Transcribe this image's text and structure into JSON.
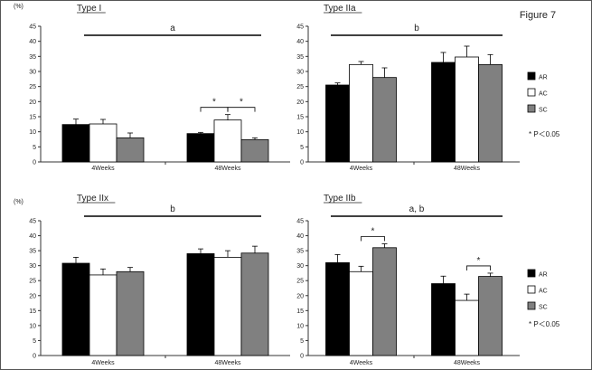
{
  "figure_label": "Figure 7",
  "colors": {
    "AR": "#000000",
    "AC": "#ffffff",
    "SC": "#808080",
    "axis": "#333333"
  },
  "legend": {
    "entries": [
      {
        "name": "AR",
        "color": "#000000"
      },
      {
        "name": "AC",
        "color": "#ffffff"
      },
      {
        "name": "SC",
        "color": "#808080"
      }
    ],
    "note": "* P＜0.05"
  },
  "chart_data": [
    {
      "type": "bar",
      "title": "Type I",
      "ylabel": "(%)",
      "ylim": [
        0,
        45
      ],
      "yticks": [
        0,
        5,
        10,
        15,
        20,
        25,
        30,
        35,
        40,
        45
      ],
      "categories": [
        "4Weeks",
        "48Weeks"
      ],
      "series": [
        {
          "name": "AR",
          "values": [
            12.4,
            9.4
          ],
          "errors": [
            1.8,
            0.4
          ]
        },
        {
          "name": "AC",
          "values": [
            12.6,
            13.9
          ],
          "errors": [
            1.5,
            1.8
          ]
        },
        {
          "name": "SC",
          "values": [
            8.0,
            7.4
          ],
          "errors": [
            1.6,
            0.6
          ]
        }
      ],
      "significance_label": "a",
      "brackets": [
        {
          "category": 1,
          "from": 0,
          "to": 1,
          "label": "*"
        },
        {
          "category": 1,
          "from": 1,
          "to": 2,
          "label": "*"
        }
      ]
    },
    {
      "type": "bar",
      "title": "Type IIa",
      "ylabel": "",
      "ylim": [
        0,
        45
      ],
      "yticks": [
        0,
        5,
        10,
        15,
        20,
        25,
        30,
        35,
        40,
        45
      ],
      "categories": [
        "4Weeks",
        "48Weeks"
      ],
      "series": [
        {
          "name": "AR",
          "values": [
            25.5,
            33.0
          ],
          "errors": [
            0.7,
            3.3
          ]
        },
        {
          "name": "AC",
          "values": [
            32.3,
            34.8
          ],
          "errors": [
            1.0,
            3.6
          ]
        },
        {
          "name": "SC",
          "values": [
            28.0,
            32.3
          ],
          "errors": [
            3.2,
            3.3
          ]
        }
      ],
      "significance_label": "b",
      "brackets": []
    },
    {
      "type": "bar",
      "title": "Type IIx",
      "ylabel": "(%)",
      "ylim": [
        0,
        45
      ],
      "yticks": [
        0,
        5,
        10,
        15,
        20,
        25,
        30,
        35,
        40,
        45
      ],
      "categories": [
        "4Weeks",
        "48Weeks"
      ],
      "series": [
        {
          "name": "AR",
          "values": [
            30.8,
            34.0
          ],
          "errors": [
            2.0,
            1.6
          ]
        },
        {
          "name": "AC",
          "values": [
            26.9,
            32.8
          ],
          "errors": [
            2.0,
            2.2
          ]
        },
        {
          "name": "SC",
          "values": [
            28.0,
            34.2
          ],
          "errors": [
            1.4,
            2.3
          ]
        }
      ],
      "significance_label": "b",
      "brackets": []
    },
    {
      "type": "bar",
      "title": "Type IIb",
      "ylabel": "",
      "ylim": [
        0,
        45
      ],
      "yticks": [
        0,
        5,
        10,
        15,
        20,
        25,
        30,
        35,
        40,
        45
      ],
      "categories": [
        "4Weeks",
        "48Weeks"
      ],
      "series": [
        {
          "name": "AR",
          "values": [
            31.0,
            24.0
          ],
          "errors": [
            2.7,
            2.5
          ]
        },
        {
          "name": "AC",
          "values": [
            28.0,
            18.4
          ],
          "errors": [
            1.8,
            2.1
          ]
        },
        {
          "name": "SC",
          "values": [
            36.0,
            26.4
          ],
          "errors": [
            1.3,
            1.1
          ]
        }
      ],
      "significance_label": "a, b",
      "brackets": [
        {
          "category": 0,
          "from": 1,
          "to": 2,
          "label": "*"
        },
        {
          "category": 1,
          "from": 1,
          "to": 2,
          "label": "*"
        }
      ]
    }
  ]
}
